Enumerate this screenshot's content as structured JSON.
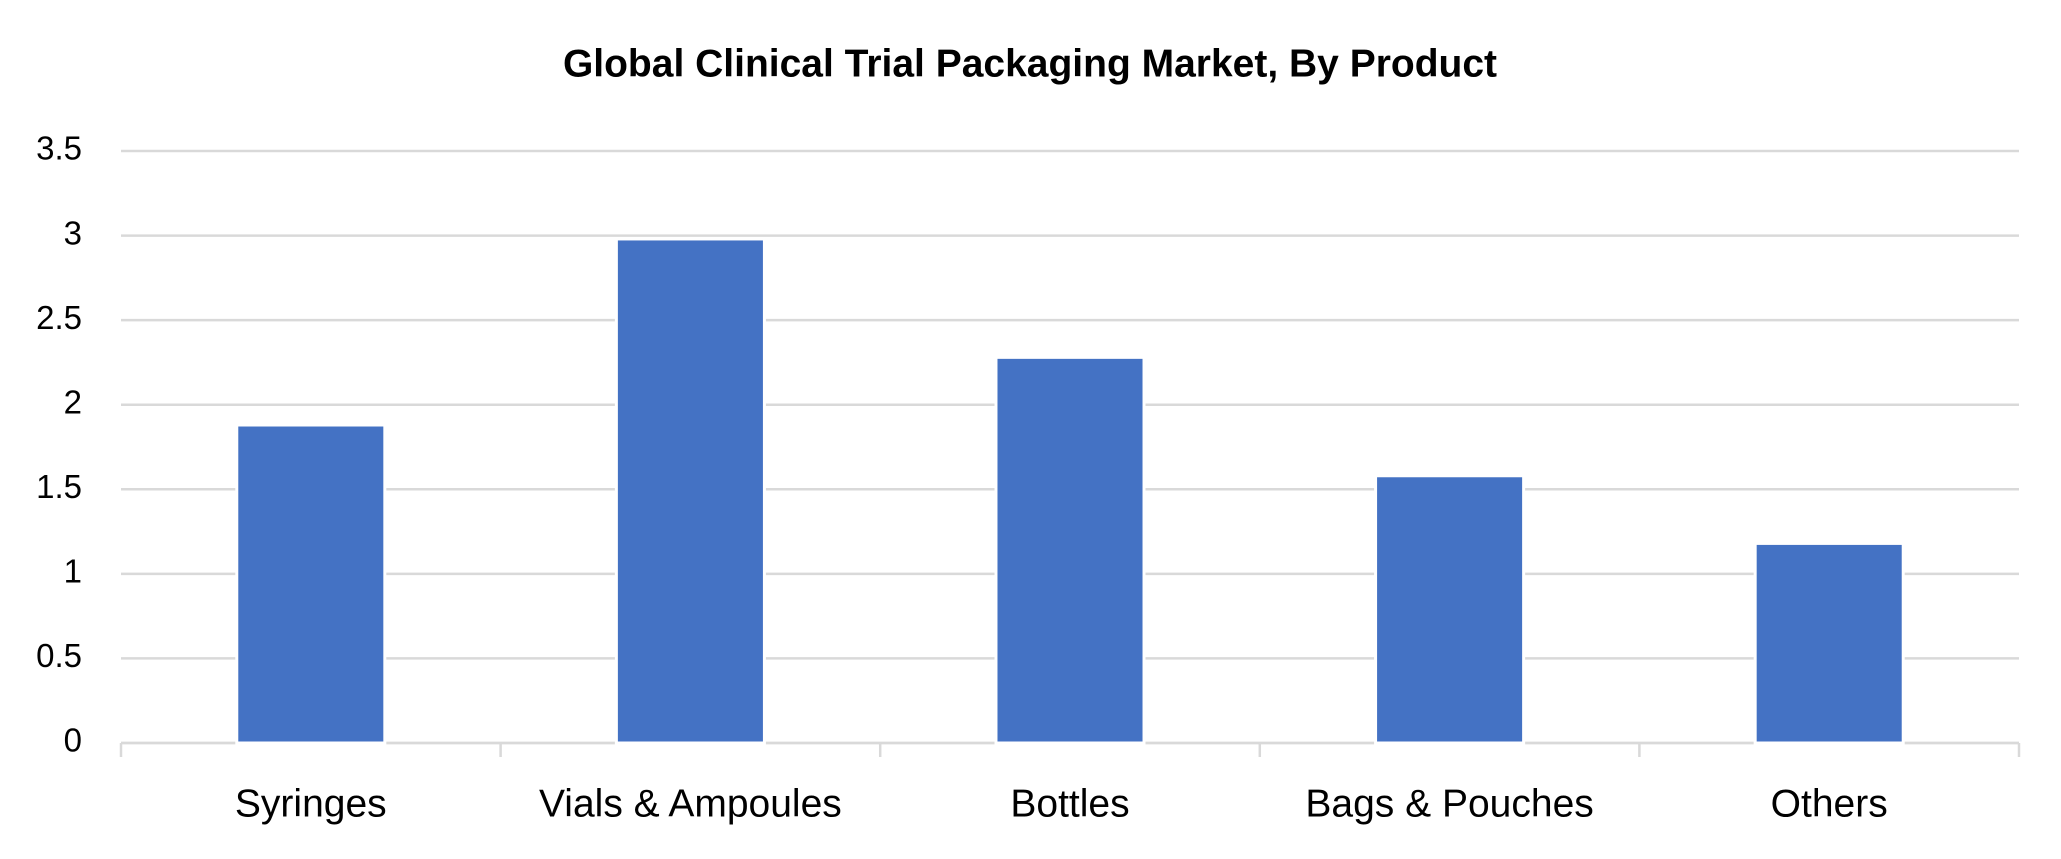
{
  "chart_data": {
    "type": "bar",
    "title": "Global Clinical Trial Packaging Market, By Product",
    "categories": [
      "Syringes",
      "Vials & Ampoules",
      "Bottles",
      "Bags & Pouches",
      "Others"
    ],
    "values": [
      1.88,
      2.98,
      2.28,
      1.58,
      1.18
    ],
    "color": "#4472c4",
    "ylim": [
      0,
      3.5
    ],
    "yticks": [
      0,
      0.5,
      1,
      1.5,
      2,
      2.5,
      3,
      3.5
    ],
    "grid": true
  }
}
